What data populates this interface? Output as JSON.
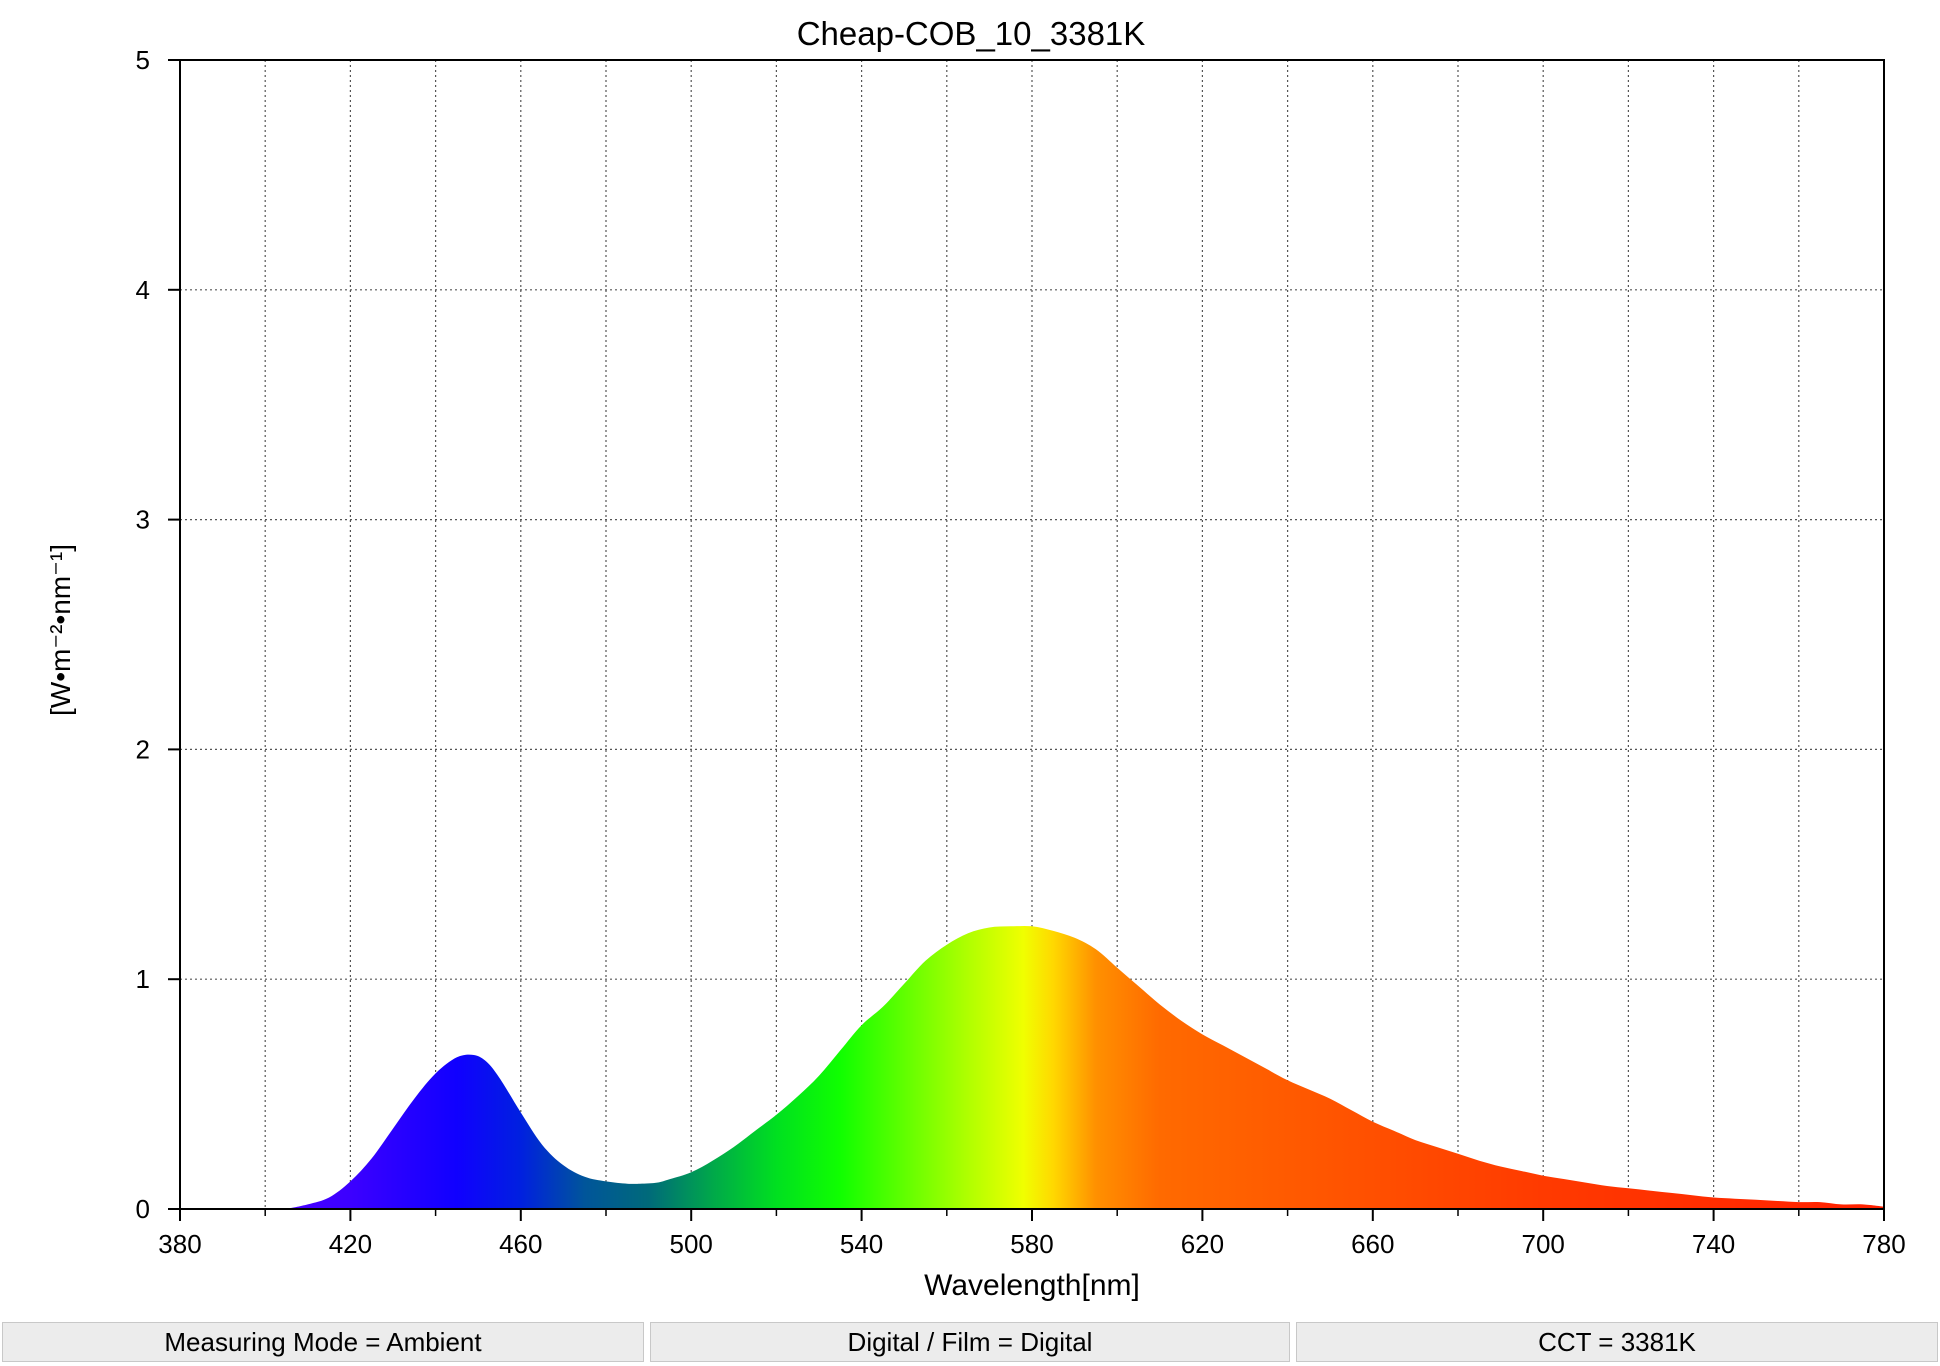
{
  "chart_data": {
    "type": "area",
    "title": "Cheap-COB_10_3381K",
    "xlabel": "Wavelength[nm]",
    "ylabel": "[W•m⁻²•nm⁻¹]",
    "xlim": [
      380,
      780
    ],
    "ylim": [
      0,
      5
    ],
    "xticks": [
      "380",
      "420",
      "460",
      "500",
      "540",
      "580",
      "620",
      "660",
      "700",
      "740",
      "780"
    ],
    "yticks": [
      "0",
      "1",
      "2",
      "3",
      "4",
      "5"
    ],
    "grid": true,
    "fill": "visible-spectrum gradient by wavelength",
    "series": [
      {
        "x": [
          405,
          410,
          415,
          420,
          425,
          430,
          435,
          440,
          445,
          449,
          452,
          455,
          460,
          465,
          470,
          475,
          480,
          485,
          488,
          492,
          495,
          500,
          505,
          510,
          515,
          520,
          525,
          530,
          535,
          540,
          545,
          550,
          555,
          560,
          565,
          570,
          575,
          580,
          585,
          590,
          595,
          600,
          605,
          610,
          615,
          620,
          625,
          630,
          635,
          640,
          645,
          650,
          655,
          660,
          665,
          670,
          675,
          680,
          685,
          690,
          695,
          700,
          705,
          710,
          715,
          720,
          725,
          730,
          735,
          740,
          745,
          750,
          755,
          760,
          765,
          770,
          775,
          780
        ],
        "y": [
          0,
          0.02,
          0.05,
          0.12,
          0.22,
          0.35,
          0.48,
          0.59,
          0.66,
          0.67,
          0.64,
          0.57,
          0.42,
          0.28,
          0.19,
          0.14,
          0.12,
          0.11,
          0.11,
          0.115,
          0.13,
          0.16,
          0.21,
          0.27,
          0.34,
          0.41,
          0.49,
          0.58,
          0.69,
          0.8,
          0.88,
          0.98,
          1.08,
          1.15,
          1.2,
          1.225,
          1.23,
          1.23,
          1.21,
          1.18,
          1.13,
          1.05,
          0.97,
          0.89,
          0.82,
          0.76,
          0.71,
          0.66,
          0.61,
          0.56,
          0.52,
          0.48,
          0.43,
          0.38,
          0.34,
          0.3,
          0.27,
          0.24,
          0.21,
          0.185,
          0.165,
          0.145,
          0.13,
          0.115,
          0.1,
          0.09,
          0.08,
          0.07,
          0.06,
          0.05,
          0.045,
          0.04,
          0.035,
          0.03,
          0.03,
          0.02,
          0.02,
          0.01
        ]
      }
    ]
  },
  "status_bar": {
    "measuring_mode": "Measuring Mode = Ambient",
    "digital_film": "Digital / Film = Digital",
    "cct": "CCT = 3381K"
  }
}
